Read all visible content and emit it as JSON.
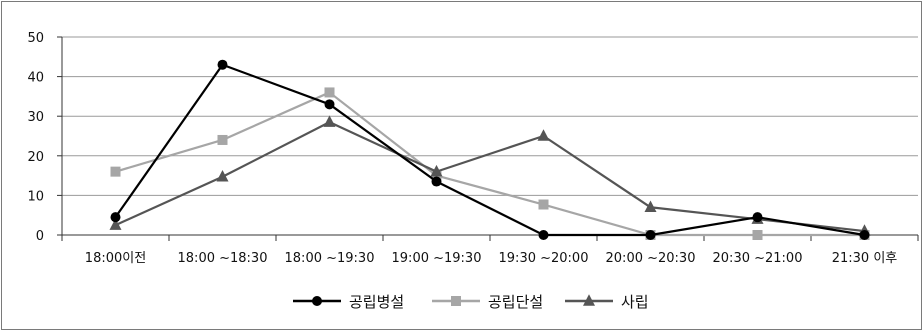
{
  "chart_data": {
    "type": "line",
    "title": "",
    "xlabel": "",
    "ylabel": "",
    "ylim": [
      0,
      50
    ],
    "yticks": [
      0,
      10,
      20,
      30,
      40,
      50
    ],
    "grid": true,
    "legend_position": "bottom",
    "categories": [
      "18:00이전",
      "18:00 ~18:30",
      "18:00 ~19:30",
      "19:00 ~19:30",
      "19:30 ~20:00",
      "20:00 ~20:30",
      "20:30 ~21:00",
      "21:30 이후"
    ],
    "series": [
      {
        "name": "공립병설",
        "values": [
          4.5,
          43,
          33,
          13.5,
          0,
          0,
          4.5,
          0
        ],
        "color": "#000000",
        "marker": "circle"
      },
      {
        "name": "공립단설",
        "values": [
          16,
          24,
          36,
          15,
          7.7,
          0,
          0,
          0
        ],
        "color": "#a6a6a6",
        "marker": "square"
      },
      {
        "name": "사립",
        "values": [
          2.5,
          14.7,
          28.5,
          16,
          25,
          7,
          4,
          1
        ],
        "color": "#555555",
        "marker": "triangle"
      }
    ]
  }
}
